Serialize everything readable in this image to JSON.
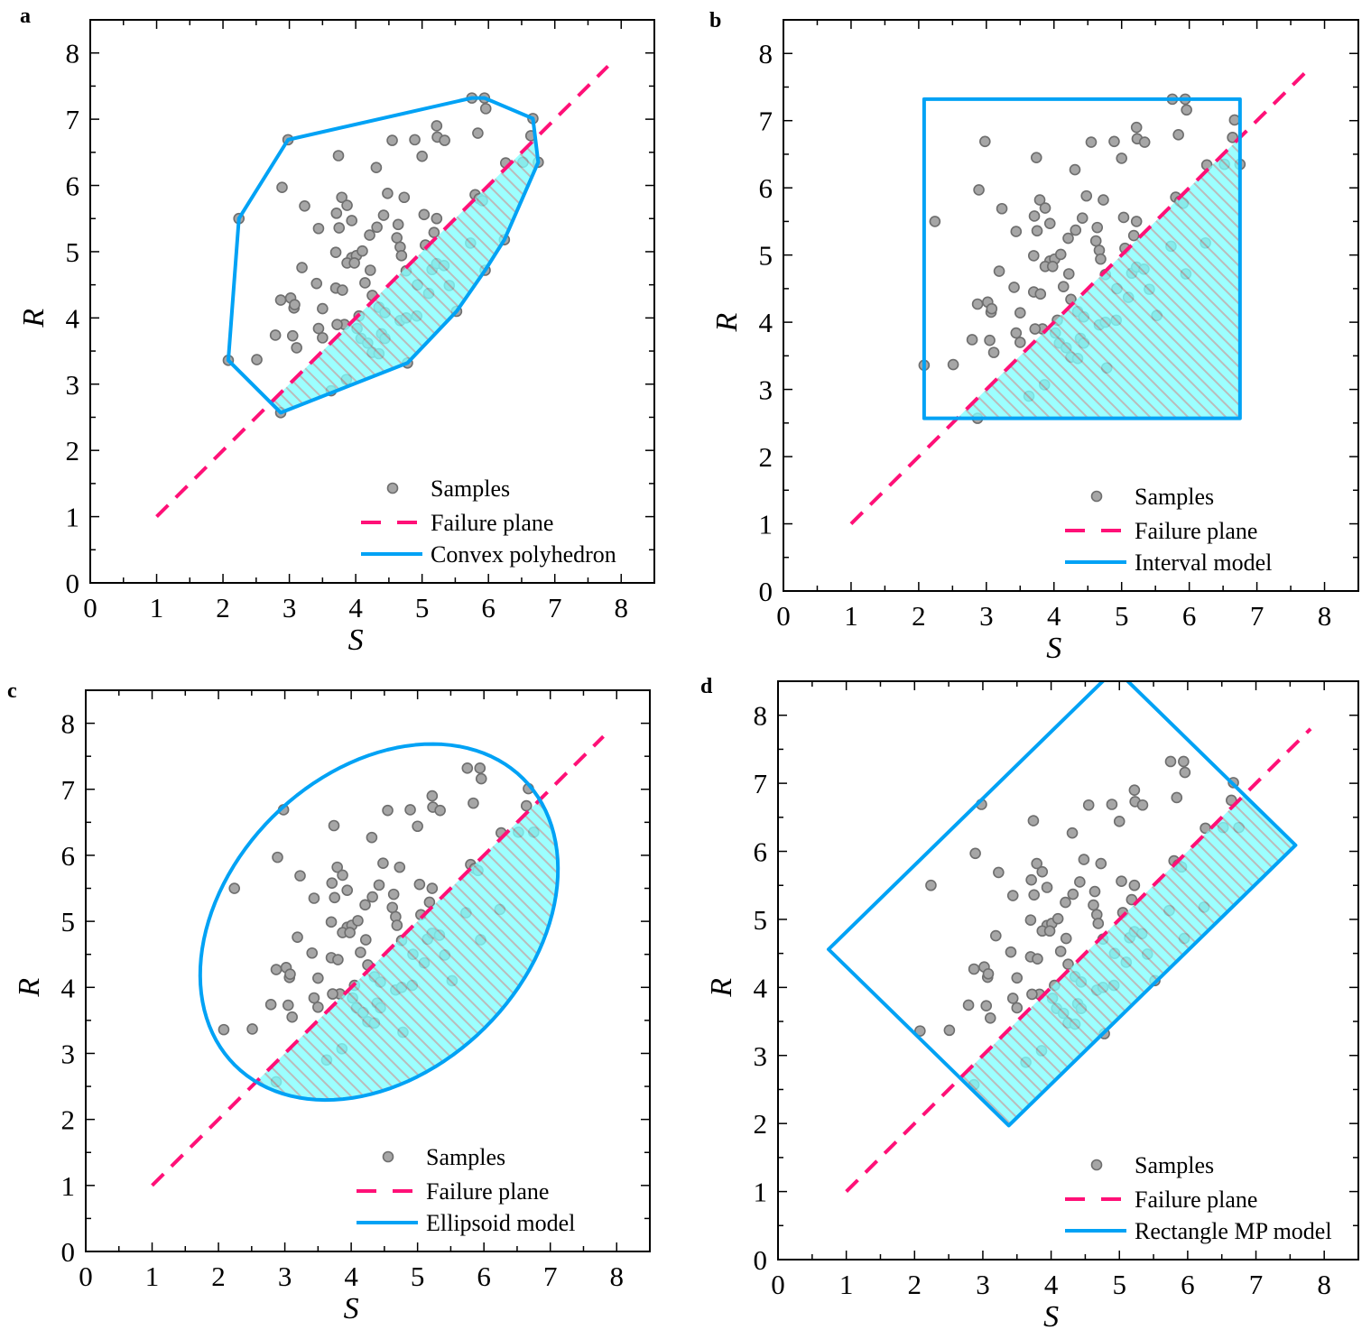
{
  "chart_data": {
    "type": "scatter",
    "colors": {
      "samples_fill": "#a6a6a6",
      "samples_stroke": "#6e6e6e",
      "failure_plane": "#ff1077",
      "model": "#00a2f5",
      "failure_region_fill": "#80ffff",
      "hatch": "#a8a8a8"
    },
    "samples": [
      [
        2.08,
        3.36
      ],
      [
        2.24,
        5.5
      ],
      [
        2.98,
        6.69
      ],
      [
        2.89,
        5.97
      ],
      [
        2.51,
        3.37
      ],
      [
        2.79,
        3.74
      ],
      [
        2.87,
        4.27
      ],
      [
        3.02,
        4.3
      ],
      [
        3.07,
        4.15
      ],
      [
        3.08,
        4.2
      ],
      [
        3.05,
        3.73
      ],
      [
        3.11,
        3.55
      ],
      [
        3.19,
        4.76
      ],
      [
        3.23,
        5.69
      ],
      [
        3.41,
        4.52
      ],
      [
        3.44,
        5.35
      ],
      [
        3.5,
        4.14
      ],
      [
        3.44,
        3.84
      ],
      [
        3.5,
        3.7
      ],
      [
        3.63,
        2.9
      ],
      [
        3.7,
        4.99
      ],
      [
        3.7,
        4.45
      ],
      [
        3.71,
        5.58
      ],
      [
        3.74,
        6.45
      ],
      [
        3.75,
        5.36
      ],
      [
        3.79,
        5.82
      ],
      [
        3.87,
        5.7
      ],
      [
        3.8,
        4.42
      ],
      [
        3.83,
        3.9
      ],
      [
        3.86,
        3.07
      ],
      [
        3.72,
        3.9
      ],
      [
        3.94,
        4.91
      ],
      [
        3.87,
        4.83
      ],
      [
        3.94,
        5.47
      ],
      [
        4.01,
        4.94
      ],
      [
        3.98,
        4.83
      ],
      [
        4.05,
        4.03
      ],
      [
        4.02,
        3.84
      ],
      [
        4.1,
        5.01
      ],
      [
        4.14,
        4.53
      ],
      [
        4.22,
        4.72
      ],
      [
        4.21,
        5.25
      ],
      [
        4.25,
        4.34
      ],
      [
        4.31,
        6.27
      ],
      [
        4.32,
        5.37
      ],
      [
        4.42,
        5.55
      ],
      [
        4.48,
        5.88
      ],
      [
        4.55,
        6.68
      ],
      [
        4.35,
        4.16
      ],
      [
        4.44,
        4.08
      ],
      [
        4.08,
        3.69
      ],
      [
        4.18,
        3.62
      ],
      [
        4.25,
        3.48
      ],
      [
        4.35,
        3.46
      ],
      [
        4.39,
        3.76
      ],
      [
        4.44,
        3.69
      ],
      [
        4.62,
        5.21
      ],
      [
        4.67,
        5.07
      ],
      [
        4.69,
        4.94
      ],
      [
        4.73,
        5.82
      ],
      [
        4.64,
        5.41
      ],
      [
        4.76,
        4.71
      ],
      [
        4.67,
        3.96
      ],
      [
        4.76,
        4.0
      ],
      [
        4.89,
        6.69
      ],
      [
        5.0,
        6.44
      ],
      [
        4.93,
        4.5
      ],
      [
        4.92,
        4.03
      ],
      [
        4.78,
        3.32
      ],
      [
        5.03,
        5.56
      ],
      [
        5.1,
        4.37
      ],
      [
        5.15,
        4.73
      ],
      [
        5.22,
        6.9
      ],
      [
        5.23,
        6.73
      ],
      [
        5.34,
        6.68
      ],
      [
        5.22,
        4.82
      ],
      [
        5.33,
        4.79
      ],
      [
        5.22,
        5.5
      ],
      [
        5.18,
        5.29
      ],
      [
        5.41,
        4.49
      ],
      [
        5.52,
        4.1
      ],
      [
        5.75,
        7.32
      ],
      [
        5.94,
        7.32
      ],
      [
        5.96,
        7.16
      ],
      [
        5.84,
        6.79
      ],
      [
        5.73,
        5.13
      ],
      [
        5.8,
        5.86
      ],
      [
        5.86,
        5.8
      ],
      [
        5.91,
        5.77
      ],
      [
        5.95,
        4.72
      ],
      [
        6.24,
        5.18
      ],
      [
        6.26,
        6.34
      ],
      [
        6.52,
        6.35
      ],
      [
        6.64,
        6.75
      ],
      [
        6.67,
        7.01
      ],
      [
        6.75,
        6.35
      ],
      [
        2.87,
        2.57
      ],
      [
        5.05,
        5.1
      ]
    ],
    "failure_plane": {
      "equation": "R = S",
      "s_range": [
        1,
        7.8
      ]
    },
    "panels": [
      {
        "letter": "a",
        "xlabel": "S",
        "ylabel": "R",
        "xlim": [
          0,
          8.5
        ],
        "ylim": [
          0,
          8.5
        ],
        "xticks": [
          "0",
          "1",
          "2",
          "3",
          "4",
          "5",
          "6",
          "7",
          "8"
        ],
        "yticks": [
          "0",
          "1",
          "2",
          "3",
          "4",
          "5",
          "6",
          "7",
          "8"
        ],
        "legend": {
          "placement": "bottom-right",
          "samples": "Samples",
          "failure": "Failure plane",
          "model": "Convex polyhedron"
        },
        "model": {
          "kind": "polygon",
          "vertices": [
            [
              2.08,
              3.36
            ],
            [
              2.24,
              5.5
            ],
            [
              2.98,
              6.69
            ],
            [
              5.75,
              7.32
            ],
            [
              5.94,
              7.32
            ],
            [
              6.67,
              7.01
            ],
            [
              6.75,
              6.35
            ],
            [
              6.24,
              5.18
            ],
            [
              5.95,
              4.72
            ],
            [
              5.52,
              4.1
            ],
            [
              4.78,
              3.32
            ],
            [
              2.87,
              2.57
            ]
          ]
        }
      },
      {
        "letter": "b",
        "xlabel": "S",
        "ylabel": "R",
        "xlim": [
          0,
          8.5
        ],
        "ylim": [
          0,
          8.5
        ],
        "xticks": [
          "0",
          "1",
          "2",
          "3",
          "4",
          "5",
          "6",
          "7",
          "8"
        ],
        "yticks": [
          "0",
          "1",
          "2",
          "3",
          "4",
          "5",
          "6",
          "7",
          "8"
        ],
        "legend": {
          "placement": "bottom-right",
          "samples": "Samples",
          "failure": "Failure plane",
          "model": "Interval model"
        },
        "model": {
          "kind": "interval",
          "s_range": [
            2.08,
            6.75
          ],
          "r_range": [
            2.57,
            7.32
          ]
        }
      },
      {
        "letter": "c",
        "xlabel": "S",
        "ylabel": "R",
        "xlim": [
          0,
          8.5
        ],
        "ylim": [
          0,
          8.5
        ],
        "xticks": [
          "0",
          "1",
          "2",
          "3",
          "4",
          "5",
          "6",
          "7",
          "8"
        ],
        "yticks": [
          "0",
          "1",
          "2",
          "3",
          "4",
          "5",
          "6",
          "7",
          "8"
        ],
        "legend": {
          "placement": "bottom-right",
          "samples": "Samples",
          "failure": "Failure plane",
          "model": "Ellipsoid model"
        },
        "model": {
          "kind": "ellipse",
          "center": [
            4.42,
            4.99
          ],
          "semi_axes": [
            3.07,
            2.26
          ],
          "angle_deg": 45
        }
      },
      {
        "letter": "d",
        "xlabel": "S",
        "ylabel": "R",
        "xlim": [
          0,
          8.5
        ],
        "ylim": [
          0,
          8.5
        ],
        "xticks": [
          "0",
          "1",
          "2",
          "3",
          "4",
          "5",
          "6",
          "7",
          "8"
        ],
        "yticks": [
          "0",
          "1",
          "2",
          "3",
          "4",
          "5",
          "6",
          "7",
          "8"
        ],
        "legend": {
          "placement": "bottom-right",
          "samples": "Samples",
          "failure": "Failure plane",
          "model": "Rectangle MP model"
        },
        "model": {
          "kind": "polygon",
          "vertices": [
            [
              0.74,
              4.56
            ],
            [
              4.94,
              8.68
            ],
            [
              7.58,
              6.09
            ],
            [
              3.38,
              1.97
            ]
          ]
        }
      }
    ]
  }
}
